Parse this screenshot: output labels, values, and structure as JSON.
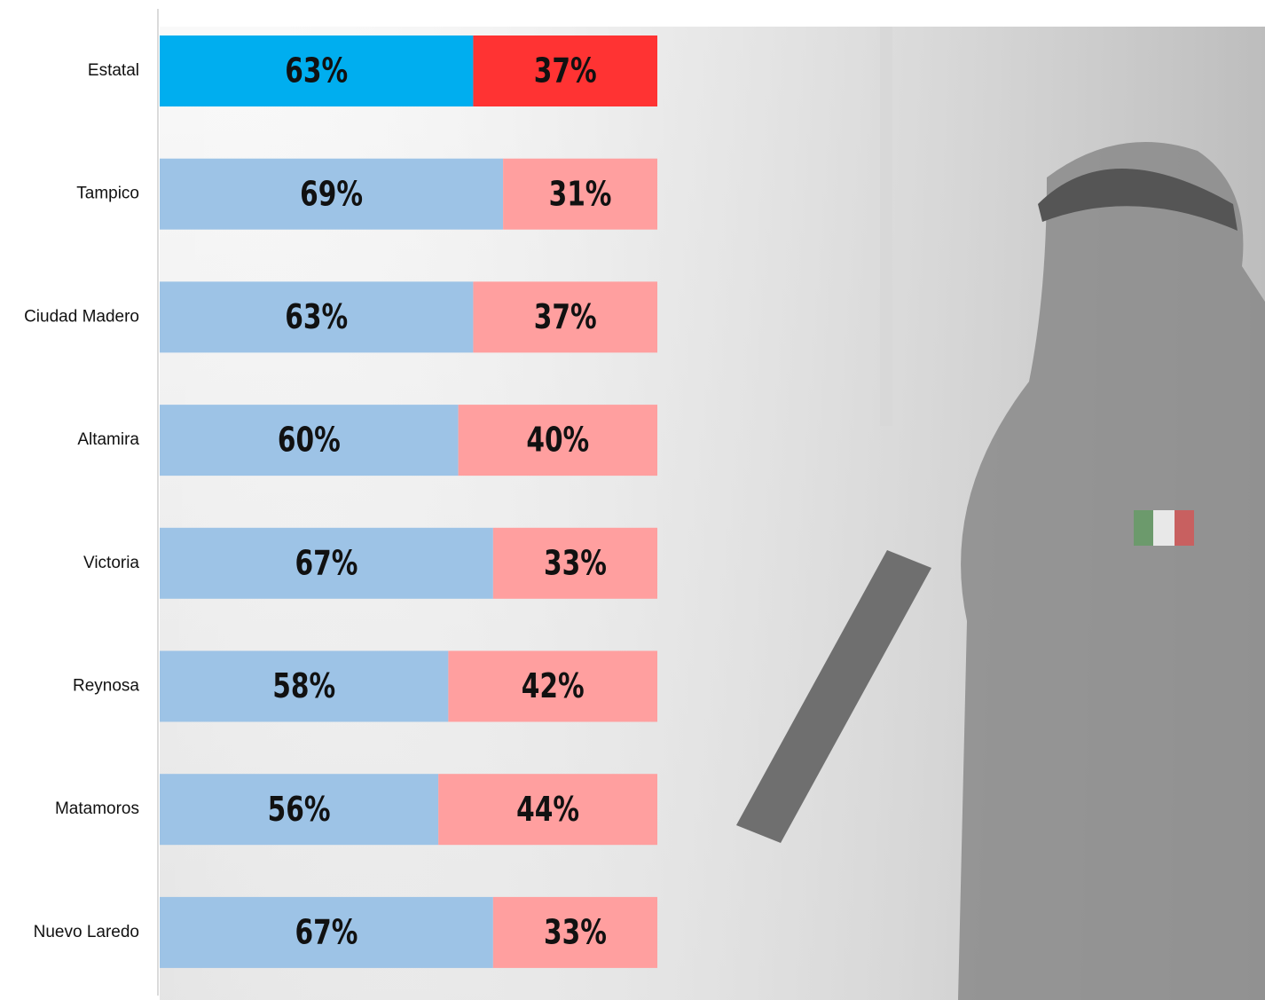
{
  "chart_data": {
    "type": "stacked-bar-100",
    "orientation": "horizontal",
    "categories": [
      "Estatal",
      "Tampico",
      "Ciudad Madero",
      "Altamira",
      "Victoria",
      "Reynosa",
      "Matamoros",
      "Nuevo Laredo"
    ],
    "xlim": [
      0,
      100
    ],
    "series": [
      {
        "colors": [
          "#00aeef",
          "#9dc3e6",
          "#9dc3e6",
          "#9dc3e6",
          "#9dc3e6",
          "#9dc3e6",
          "#9dc3e6",
          "#9dc3e6"
        ],
        "values": [
          63,
          69,
          63,
          60,
          67,
          58,
          56,
          67
        ],
        "value_labels": [
          "63%",
          "69%",
          "63%",
          "60%",
          "67%",
          "58%",
          "56%",
          "67%"
        ]
      },
      {
        "colors": [
          "#ff3333",
          "#ff9f9f",
          "#ff9f9f",
          "#ff9f9f",
          "#ff9f9f",
          "#ff9f9f",
          "#ff9f9f",
          "#ff9f9f"
        ],
        "values": [
          37,
          31,
          37,
          40,
          33,
          42,
          44,
          33
        ],
        "value_labels": [
          "37%",
          "31%",
          "37%",
          "40%",
          "33%",
          "42%",
          "44%",
          "33%"
        ]
      }
    ]
  }
}
